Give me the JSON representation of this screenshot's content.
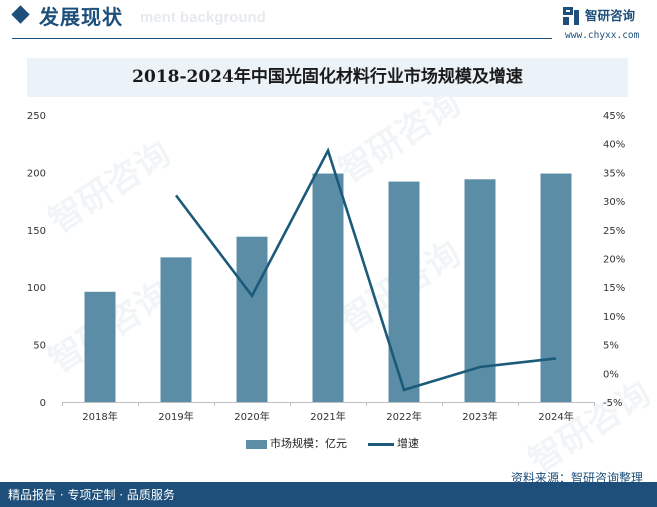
{
  "header": {
    "section_title": "发展现状",
    "section_ghost": "ment background",
    "logo_name": "智研咨询",
    "logo_url": "www.chyxx.com"
  },
  "watermark": "智研咨询",
  "chart_data": {
    "type": "bar+line",
    "title": "2018-2024年中国光固化材料行业市场规模及增速",
    "categories": [
      "2018年",
      "2019年",
      "2020年",
      "2021年",
      "2022年",
      "2023年",
      "2024年"
    ],
    "left_axis": {
      "ticks": [
        "0",
        "50",
        "100",
        "150",
        "200",
        "250"
      ],
      "ylim": [
        0,
        250
      ]
    },
    "right_axis": {
      "ticks": [
        "-5%",
        "0%",
        "5%",
        "10%",
        "15%",
        "20%",
        "25%",
        "30%",
        "35%",
        "40%",
        "45%"
      ],
      "ylim": [
        -5,
        45
      ]
    },
    "series": [
      {
        "name": "市场规模：亿元",
        "type": "bar",
        "axis": "left",
        "color": "#5b8ea6",
        "values": [
          96,
          126,
          144,
          199,
          192,
          194,
          199
        ]
      },
      {
        "name": "增速",
        "type": "line",
        "axis": "right",
        "color": "#1c5a7a",
        "values": [
          null,
          31,
          13.5,
          38.8,
          -2.9,
          1.1,
          2.6
        ]
      }
    ],
    "grid": false,
    "legend_position": "bottom-center"
  },
  "source": "资料来源：智研咨询整理",
  "footer": "精品报告 · 专项定制 · 品质服务"
}
